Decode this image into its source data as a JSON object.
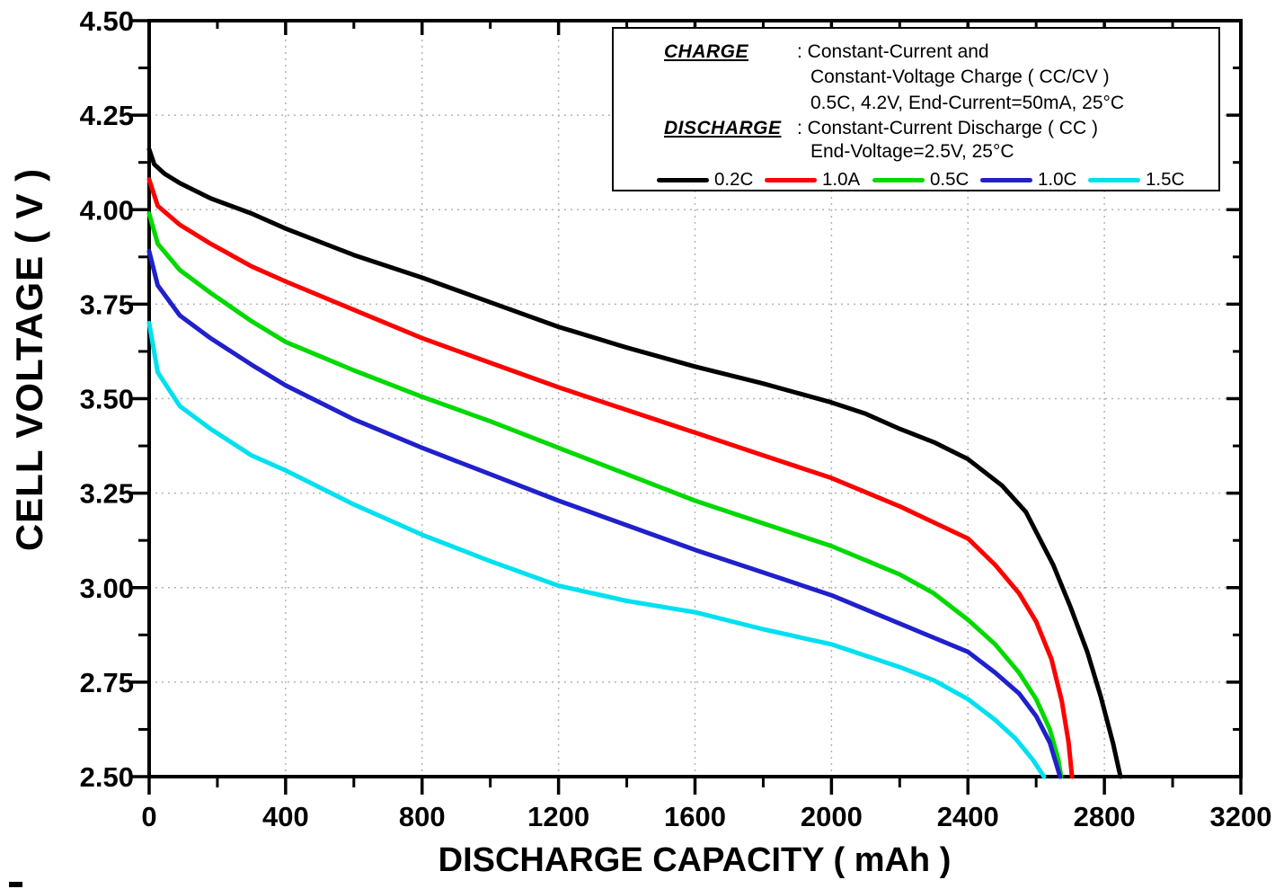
{
  "legend": {
    "charge_label": "CHARGE",
    "charge_line1": ": Constant-Current and",
    "charge_line2": "Constant-Voltage Charge ( CC/CV )",
    "charge_line3": "0.5C, 4.2V, End-Current=50mA, 25°C",
    "discharge_label": "DISCHARGE",
    "discharge_line1": ": Constant-Current Discharge ( CC )",
    "discharge_line2": "End-Voltage=2.5V, 25°C"
  },
  "chart_data": {
    "type": "line",
    "title": "",
    "xlabel": "DISCHARGE CAPACITY ( mAh )",
    "ylabel": "CELL VOLTAGE ( V )",
    "xlim": [
      0,
      3200
    ],
    "ylim": [
      2.5,
      4.5
    ],
    "x_major_ticks": [
      0,
      400,
      800,
      1200,
      1600,
      2000,
      2400,
      2800,
      3200
    ],
    "x_tick_labels": [
      "0",
      "400",
      "800",
      "1200",
      "1600",
      "2000",
      "2400",
      "2800",
      "3200"
    ],
    "x_minor_tick_step": 200,
    "y_major_ticks": [
      2.5,
      2.75,
      3.0,
      3.25,
      3.5,
      3.75,
      4.0,
      4.25,
      4.5
    ],
    "y_tick_labels": [
      "2.50",
      "2.75",
      "3.00",
      "3.25",
      "3.50",
      "3.75",
      "4.00",
      "4.25",
      "4.50"
    ],
    "y_minor_tick_step": 0.125,
    "grid": {
      "show_major": true,
      "style": "dotted",
      "color": "#b3b3b3"
    },
    "legend_position": "top-right",
    "frame_color": "#000000",
    "series": [
      {
        "name": "0.2C",
        "color": "#000000",
        "points": [
          [
            0,
            4.16
          ],
          [
            15,
            4.12
          ],
          [
            45,
            4.095
          ],
          [
            90,
            4.07
          ],
          [
            180,
            4.03
          ],
          [
            300,
            3.99
          ],
          [
            400,
            3.95
          ],
          [
            600,
            3.88
          ],
          [
            800,
            3.82
          ],
          [
            1000,
            3.755
          ],
          [
            1200,
            3.69
          ],
          [
            1400,
            3.635
          ],
          [
            1600,
            3.585
          ],
          [
            1800,
            3.54
          ],
          [
            2000,
            3.49
          ],
          [
            2100,
            3.46
          ],
          [
            2200,
            3.42
          ],
          [
            2300,
            3.385
          ],
          [
            2400,
            3.34
          ],
          [
            2500,
            3.27
          ],
          [
            2570,
            3.2
          ],
          [
            2650,
            3.06
          ],
          [
            2700,
            2.95
          ],
          [
            2750,
            2.83
          ],
          [
            2790,
            2.71
          ],
          [
            2825,
            2.59
          ],
          [
            2847,
            2.5
          ]
        ]
      },
      {
        "name": "1.0A",
        "color": "#ff0000",
        "points": [
          [
            0,
            4.08
          ],
          [
            25,
            4.01
          ],
          [
            90,
            3.96
          ],
          [
            180,
            3.91
          ],
          [
            300,
            3.85
          ],
          [
            400,
            3.81
          ],
          [
            600,
            3.735
          ],
          [
            800,
            3.66
          ],
          [
            1000,
            3.595
          ],
          [
            1200,
            3.53
          ],
          [
            1400,
            3.47
          ],
          [
            1600,
            3.41
          ],
          [
            1800,
            3.35
          ],
          [
            2000,
            3.29
          ],
          [
            2200,
            3.215
          ],
          [
            2400,
            3.13
          ],
          [
            2480,
            3.06
          ],
          [
            2550,
            2.985
          ],
          [
            2600,
            2.91
          ],
          [
            2645,
            2.81
          ],
          [
            2675,
            2.7
          ],
          [
            2695,
            2.59
          ],
          [
            2705,
            2.5
          ]
        ]
      },
      {
        "name": "0.5C",
        "color": "#00d900",
        "points": [
          [
            0,
            3.99
          ],
          [
            25,
            3.91
          ],
          [
            90,
            3.84
          ],
          [
            180,
            3.78
          ],
          [
            300,
            3.705
          ],
          [
            400,
            3.65
          ],
          [
            600,
            3.575
          ],
          [
            800,
            3.505
          ],
          [
            1000,
            3.44
          ],
          [
            1200,
            3.37
          ],
          [
            1400,
            3.3
          ],
          [
            1600,
            3.23
          ],
          [
            1800,
            3.17
          ],
          [
            2000,
            3.11
          ],
          [
            2200,
            3.035
          ],
          [
            2300,
            2.985
          ],
          [
            2400,
            2.915
          ],
          [
            2480,
            2.85
          ],
          [
            2550,
            2.775
          ],
          [
            2600,
            2.705
          ],
          [
            2640,
            2.625
          ],
          [
            2665,
            2.545
          ],
          [
            2673,
            2.5
          ]
        ]
      },
      {
        "name": "1.0C",
        "color": "#2020cc",
        "points": [
          [
            0,
            3.89
          ],
          [
            25,
            3.8
          ],
          [
            90,
            3.72
          ],
          [
            180,
            3.66
          ],
          [
            300,
            3.59
          ],
          [
            400,
            3.535
          ],
          [
            600,
            3.445
          ],
          [
            800,
            3.37
          ],
          [
            1000,
            3.3
          ],
          [
            1200,
            3.23
          ],
          [
            1400,
            3.165
          ],
          [
            1600,
            3.1
          ],
          [
            1800,
            3.04
          ],
          [
            2000,
            2.98
          ],
          [
            2200,
            2.905
          ],
          [
            2400,
            2.83
          ],
          [
            2480,
            2.775
          ],
          [
            2550,
            2.72
          ],
          [
            2600,
            2.66
          ],
          [
            2640,
            2.59
          ],
          [
            2670,
            2.5
          ]
        ]
      },
      {
        "name": "1.5C",
        "color": "#00e0f0",
        "points": [
          [
            0,
            3.7
          ],
          [
            25,
            3.57
          ],
          [
            90,
            3.48
          ],
          [
            180,
            3.42
          ],
          [
            300,
            3.35
          ],
          [
            400,
            3.31
          ],
          [
            600,
            3.22
          ],
          [
            800,
            3.14
          ],
          [
            1000,
            3.07
          ],
          [
            1200,
            3.005
          ],
          [
            1400,
            2.965
          ],
          [
            1600,
            2.935
          ],
          [
            1800,
            2.89
          ],
          [
            2000,
            2.85
          ],
          [
            2200,
            2.79
          ],
          [
            2300,
            2.755
          ],
          [
            2400,
            2.705
          ],
          [
            2480,
            2.65
          ],
          [
            2540,
            2.6
          ],
          [
            2590,
            2.545
          ],
          [
            2623,
            2.5
          ]
        ]
      }
    ]
  }
}
